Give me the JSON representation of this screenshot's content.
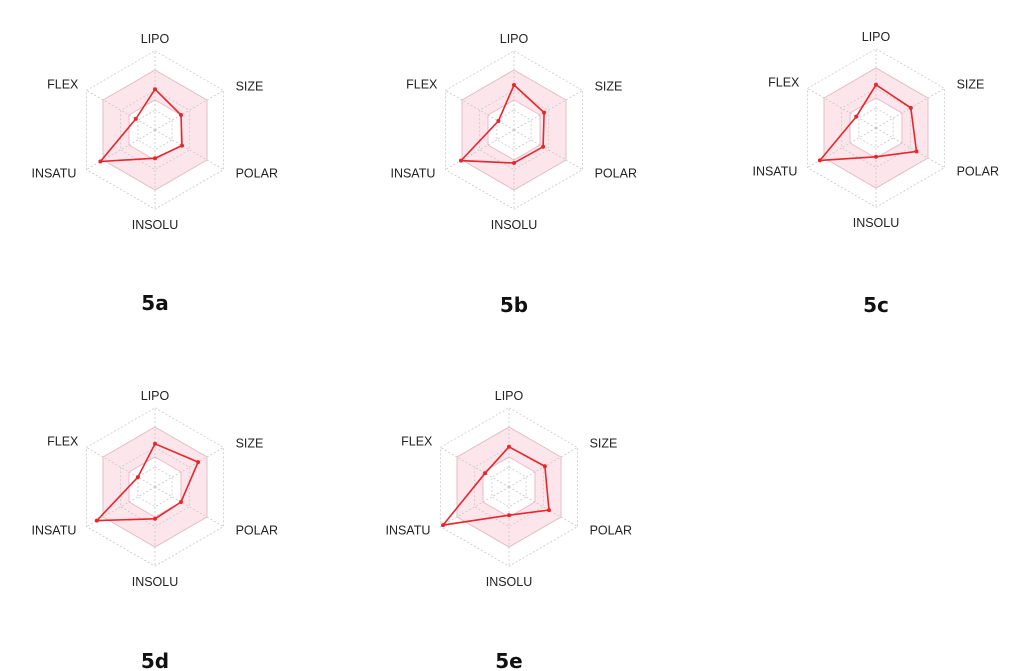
{
  "chart_data": [
    {
      "type": "radar",
      "label": "5a",
      "axes": [
        "LIPO",
        "SIZE",
        "POLAR",
        "INSOLU",
        "INSATU",
        "FLEX"
      ],
      "values": [
        0.68,
        0.5,
        0.52,
        0.47,
        1.05,
        0.37
      ],
      "band": [
        0.5,
        1.0
      ],
      "rmax": 1.32
    },
    {
      "type": "radar",
      "label": "5b",
      "axes": [
        "LIPO",
        "SIZE",
        "POLAR",
        "INSOLU",
        "INSATU",
        "FLEX"
      ],
      "values": [
        0.75,
        0.58,
        0.56,
        0.55,
        1.02,
        0.3
      ],
      "band": [
        0.5,
        1.0
      ],
      "rmax": 1.32
    },
    {
      "type": "radar",
      "label": "5c",
      "axes": [
        "LIPO",
        "SIZE",
        "POLAR",
        "INSOLU",
        "INSATU",
        "FLEX"
      ],
      "values": [
        0.72,
        0.67,
        0.78,
        0.48,
        1.08,
        0.38
      ],
      "band": [
        0.5,
        1.0
      ],
      "rmax": 1.32
    },
    {
      "type": "radar",
      "label": "5d",
      "axes": [
        "LIPO",
        "SIZE",
        "POLAR",
        "INSOLU",
        "INSATU",
        "FLEX"
      ],
      "values": [
        0.72,
        0.83,
        0.5,
        0.53,
        1.12,
        0.33
      ],
      "band": [
        0.5,
        1.0
      ],
      "rmax": 1.32
    },
    {
      "type": "radar",
      "label": "5e",
      "axes": [
        "LIPO",
        "SIZE",
        "POLAR",
        "INSOLU",
        "INSATU",
        "FLEX"
      ],
      "values": [
        0.67,
        0.69,
        0.77,
        0.47,
        1.27,
        0.46
      ],
      "band": [
        0.5,
        1.0
      ],
      "rmax": 1.32
    }
  ],
  "style": {
    "line_color": "#e8262c",
    "band_fill": "#fce6ec",
    "band_stroke": "#f0b8c8",
    "grid_color": "#c8c8c8"
  }
}
